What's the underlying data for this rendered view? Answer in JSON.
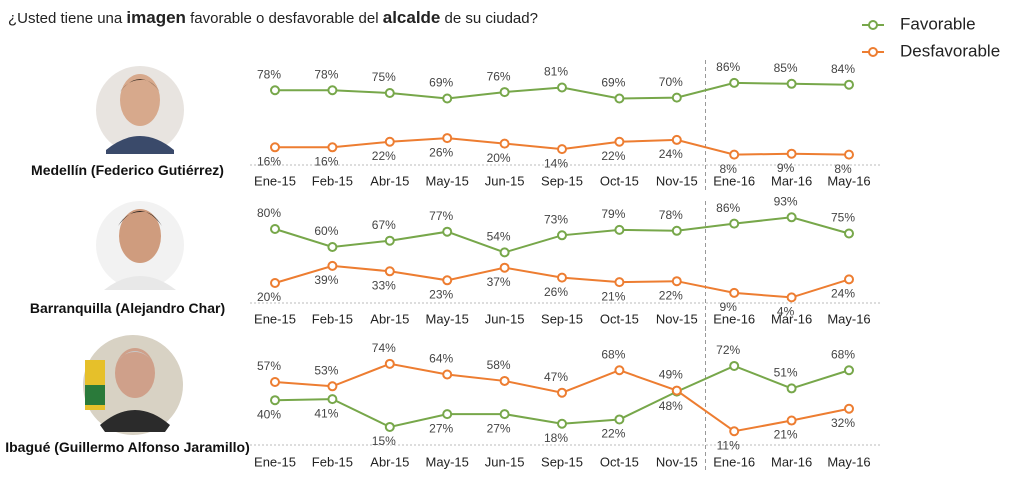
{
  "header": {
    "title_parts": [
      "¿Usted tiene una ",
      "imagen",
      " favorable o desfavorable del ",
      "alcalde",
      " de su ciudad?"
    ]
  },
  "chart_data": [
    {
      "type": "line",
      "label": "Medellín (Federico Gutiérrez)",
      "categories": [
        "Ene-15",
        "Feb-15",
        "Abr-15",
        "May-15",
        "Jun-15",
        "Sep-15",
        "Oct-15",
        "Nov-15",
        "Ene-16",
        "Mar-16",
        "May-16"
      ],
      "ylim": [
        0,
        100
      ],
      "series": [
        {
          "name": "Favorable",
          "color": "#77a74a",
          "values": [
            78,
            78,
            75,
            69,
            76,
            81,
            69,
            70,
            86,
            85,
            84
          ],
          "value_labels": [
            "78%",
            "78%",
            "75%",
            "69%",
            "76%",
            "81%",
            "69%",
            "70%",
            "86%",
            "85%",
            "84%"
          ]
        },
        {
          "name": "Desfavorable",
          "color": "#ed7d31",
          "values": [
            16,
            16,
            22,
            26,
            20,
            14,
            22,
            24,
            8,
            9,
            8
          ],
          "value_labels": [
            "16%",
            "16%",
            "22%",
            "26%",
            "20%",
            "14%",
            "22%",
            "24%",
            "8%",
            "9%",
            "8%"
          ]
        }
      ]
    },
    {
      "type": "line",
      "label": "Barranquilla (Alejandro Char)",
      "categories": [
        "Ene-15",
        "Feb-15",
        "Abr-15",
        "May-15",
        "Jun-15",
        "Sep-15",
        "Oct-15",
        "Nov-15",
        "Ene-16",
        "Mar-16",
        "May-16"
      ],
      "ylim": [
        0,
        100
      ],
      "series": [
        {
          "name": "Favorable",
          "color": "#77a74a",
          "values": [
            80,
            60,
            67,
            77,
            54,
            73,
            79,
            78,
            86,
            93,
            75
          ],
          "value_labels": [
            "80%",
            "60%",
            "67%",
            "77%",
            "54%",
            "73%",
            "79%",
            "78%",
            "86%",
            "93%",
            "75%"
          ]
        },
        {
          "name": "Desfavorable",
          "color": "#ed7d31",
          "values": [
            20,
            39,
            33,
            23,
            37,
            26,
            21,
            22,
            9,
            4,
            24
          ],
          "value_labels": [
            "20%",
            "39%",
            "33%",
            "23%",
            "37%",
            "26%",
            "21%",
            "22%",
            "9%",
            "4%",
            "24%"
          ]
        }
      ]
    },
    {
      "type": "line",
      "label": "Ibagué (Guillermo Alfonso Jaramillo)",
      "categories": [
        "Ene-15",
        "Feb-15",
        "Abr-15",
        "May-15",
        "Jun-15",
        "Sep-15",
        "Oct-15",
        "Nov-15",
        "Ene-16",
        "Mar-16",
        "May-16"
      ],
      "ylim": [
        0,
        100
      ],
      "series": [
        {
          "name": "Favorable",
          "color": "#77a74a",
          "values": [
            40,
            41,
            15,
            27,
            27,
            18,
            22,
            48,
            72,
            51,
            68
          ],
          "value_labels": [
            "40%",
            "41%",
            "15%",
            "27%",
            "27%",
            "18%",
            "22%",
            "48%",
            "72%",
            "51%",
            "68%"
          ]
        },
        {
          "name": "Desfavorable",
          "color": "#ed7d31",
          "values": [
            57,
            53,
            74,
            64,
            58,
            47,
            68,
            49,
            11,
            21,
            32
          ],
          "value_labels": [
            "57%",
            "53%",
            "74%",
            "64%",
            "58%",
            "47%",
            "68%",
            "49%",
            "11%",
            "21%",
            "32%"
          ]
        }
      ]
    }
  ]
}
